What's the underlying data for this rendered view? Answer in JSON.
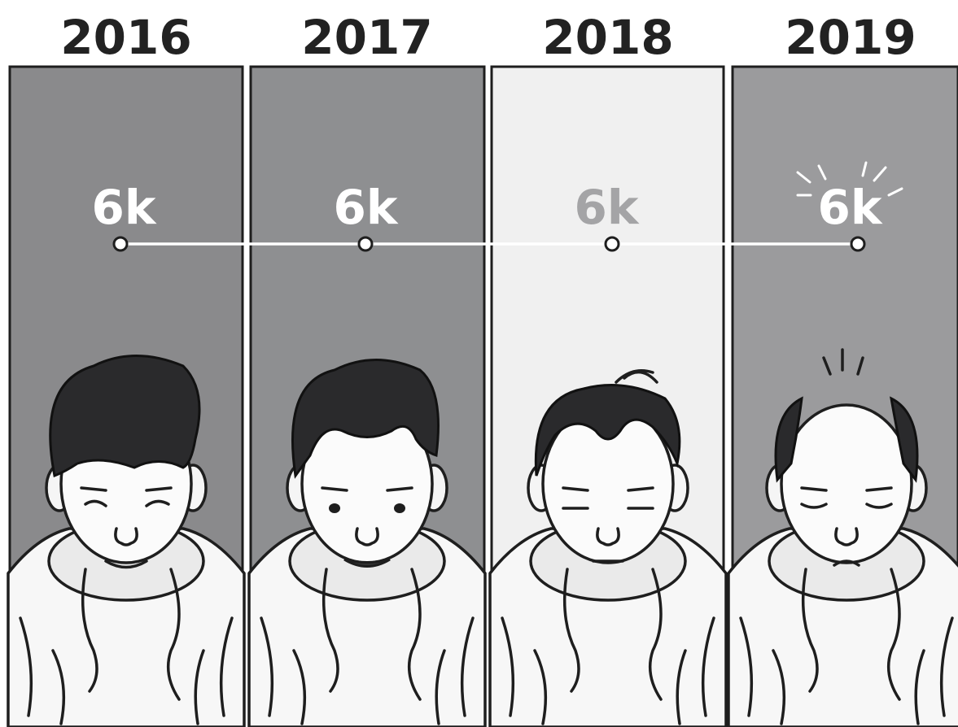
{
  "panels": [
    {
      "year": "2016",
      "label": "6k"
    },
    {
      "year": "2017",
      "label": "6k"
    },
    {
      "year": "2018",
      "label": "6k"
    },
    {
      "year": "2019",
      "label": "6k"
    }
  ]
}
